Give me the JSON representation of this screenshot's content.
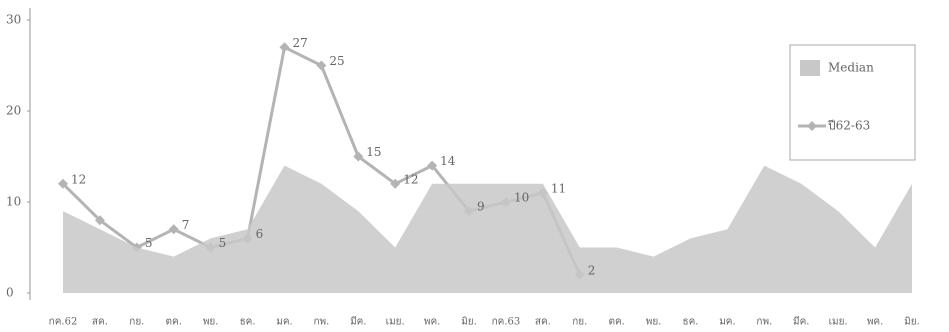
{
  "chart_data": {
    "type": "area_line",
    "categories": [
      "กค.62",
      "สค.",
      "กย.",
      "ตค.",
      "พย.",
      "ธค.",
      "มค.",
      "กพ.",
      "มีค.",
      "เมย.",
      "พค.",
      "มิย.",
      "กค.63",
      "สค.",
      "กย.",
      "ตค.",
      "พย.",
      "ธค.",
      "มค.",
      "กพ.",
      "มีค.",
      "เมย.",
      "พค.",
      "มิย."
    ],
    "series": [
      {
        "name": "Median",
        "color": "#c8c8c8",
        "kind": "area",
        "values": [
          9,
          7,
          5,
          4,
          6,
          7,
          14,
          12,
          9,
          5,
          12,
          12,
          12,
          12,
          5,
          5,
          4,
          6,
          7,
          14,
          12,
          9,
          5,
          12
        ]
      },
      {
        "name": "ปี62-63",
        "color": "#b4b4b4",
        "kind": "line",
        "values": [
          12,
          8,
          5,
          7,
          5,
          6,
          27,
          25,
          15,
          12,
          14,
          9,
          10,
          11,
          2,
          null,
          null,
          null,
          null,
          null,
          null,
          null,
          null,
          null
        ],
        "value_labels": [
          "12",
          null,
          "5",
          "7",
          "5",
          "6",
          "27",
          "25",
          "15",
          "12",
          "14",
          "9",
          "10",
          "11",
          "2",
          null,
          null,
          null,
          null,
          null,
          null,
          null,
          null,
          null
        ]
      }
    ],
    "ylim": [
      0,
      30
    ],
    "yticks": [
      0,
      10,
      20,
      30
    ],
    "grid": false,
    "legend": "right"
  }
}
